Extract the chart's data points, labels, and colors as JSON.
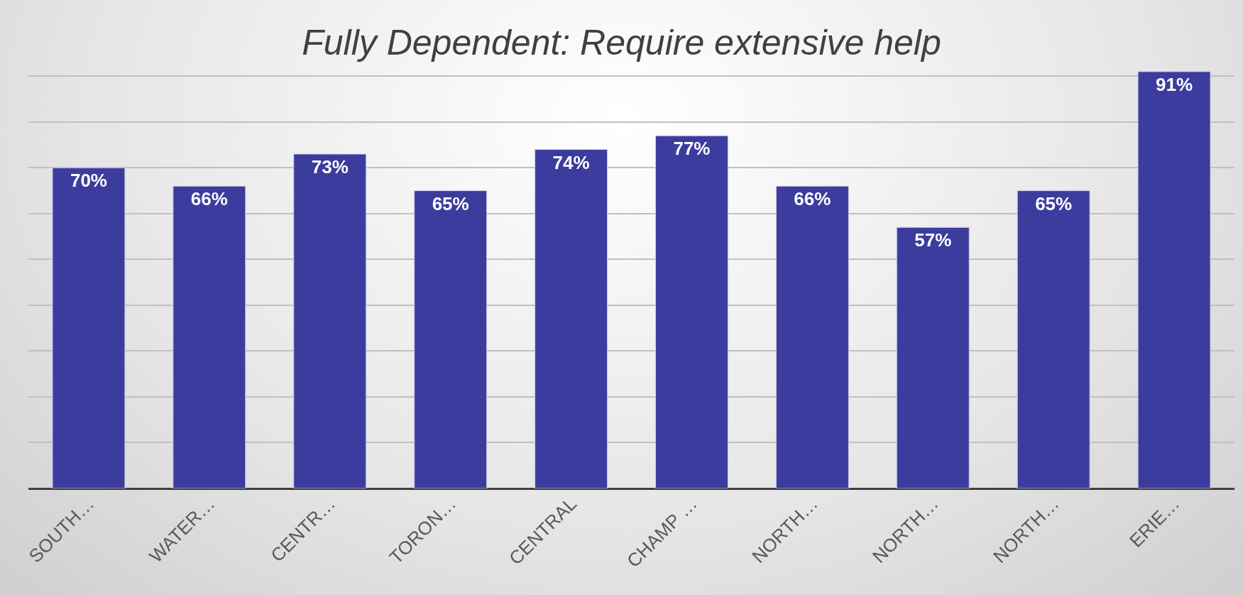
{
  "chart_data": {
    "type": "bar",
    "title": "Fully Dependent: Require extensive help",
    "categories": [
      "SOUTH…",
      "WATER…",
      "CENTR…",
      "TORON…",
      "CENTRAL",
      "CHAMP …",
      "NORTH…",
      "NORTH…",
      "NORTH…",
      "ERIE…"
    ],
    "values": [
      70,
      66,
      73,
      65,
      74,
      77,
      66,
      57,
      65,
      91
    ],
    "color": "#3c3c9e",
    "value_labels": [
      "70%",
      "66%",
      "73%",
      "65%",
      "74%",
      "77%",
      "66%",
      "57%",
      "65%",
      "91%"
    ],
    "yticks": [
      {
        "value": 0,
        "label": null
      },
      {
        "value": 10,
        "label": null
      },
      {
        "value": 20,
        "label": null
      },
      {
        "value": 30,
        "label": null
      },
      {
        "value": 40,
        "label": null
      },
      {
        "value": 50,
        "label": null
      },
      {
        "value": 60,
        "label": null
      },
      {
        "value": 70,
        "label": null
      },
      {
        "value": 80,
        "label": null
      },
      {
        "value": 90,
        "label": null
      }
    ],
    "grid": "y",
    "tick_labels": "x"
  }
}
